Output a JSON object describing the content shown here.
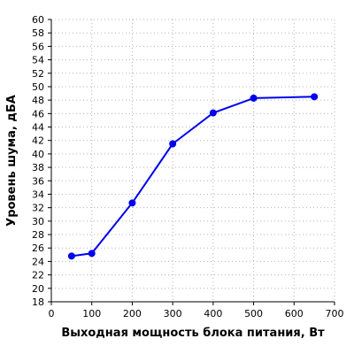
{
  "chart_data": {
    "type": "line",
    "title": "",
    "xlabel": "Выходная мощность блока питания, Вт",
    "ylabel": "Уровень шума, дБА",
    "xlim": [
      0,
      700
    ],
    "ylim": [
      18,
      60
    ],
    "xticks": [
      0,
      100,
      200,
      300,
      400,
      500,
      600,
      700
    ],
    "yticks": [
      18,
      20,
      22,
      24,
      26,
      28,
      30,
      32,
      34,
      36,
      38,
      40,
      42,
      44,
      46,
      48,
      50,
      52,
      54,
      56,
      58,
      60
    ],
    "grid": true,
    "grid_style": "dotted",
    "legend": "none",
    "series": [
      {
        "color": "#0000ee",
        "x": [
          50,
          100,
          200,
          300,
          400,
          500,
          650
        ],
        "y": [
          24.8,
          25.2,
          32.7,
          41.5,
          46.1,
          48.3,
          48.5
        ]
      }
    ]
  }
}
